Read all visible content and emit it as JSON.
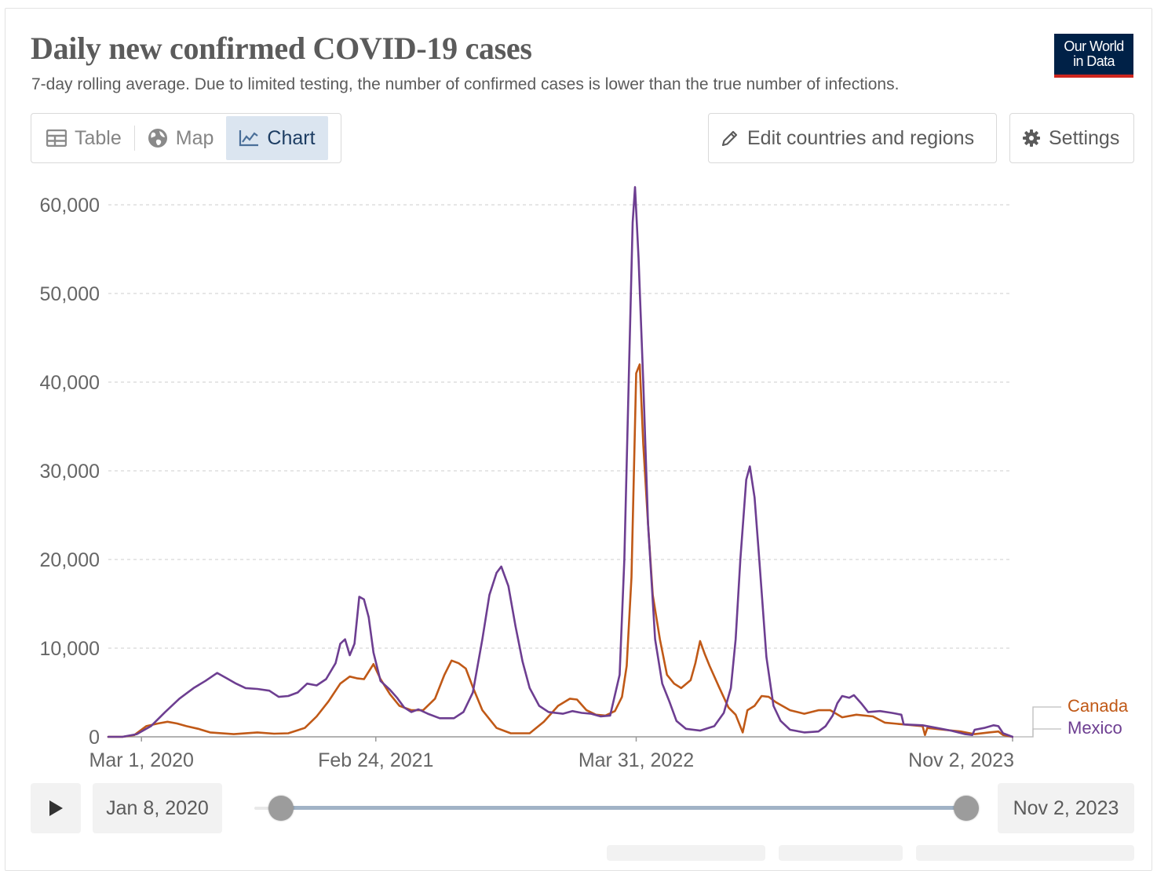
{
  "header": {
    "title": "Daily new confirmed COVID-19 cases",
    "subtitle": "7-day rolling average. Due to limited testing, the number of confirmed cases is lower than the true number of infections.",
    "logo_line1": "Our World",
    "logo_line2": "in Data"
  },
  "tabs": [
    {
      "label": "Table",
      "icon": "table-icon",
      "active": false
    },
    {
      "label": "Map",
      "icon": "globe-icon",
      "active": false
    },
    {
      "label": "Chart",
      "icon": "line-chart-icon",
      "active": true
    }
  ],
  "toolbar": {
    "edit_label": "Edit countries and regions",
    "settings_label": "Settings"
  },
  "timeline": {
    "start_label": "Jan 8, 2020",
    "end_label": "Nov 2, 2023",
    "start_fraction": 0.0,
    "end_fraction": 1.0
  },
  "colors": {
    "canada": "#c05917",
    "mexico": "#6d3e91",
    "grid": "#dddddd",
    "axis": "#999999"
  },
  "chart_data": {
    "type": "line",
    "title": "Daily new confirmed COVID-19 cases",
    "subtitle": "7-day rolling average. Due to limited testing, the number of confirmed cases is lower than the true number of infections.",
    "xlabel": "",
    "ylabel": "",
    "x_domain_years": [
      2020.02,
      2023.84
    ],
    "ylim": [
      0,
      60000
    ],
    "grid": true,
    "legend": "right",
    "yticks": [
      {
        "value": 0,
        "label": "0"
      },
      {
        "value": 10000,
        "label": "10,000"
      },
      {
        "value": 20000,
        "label": "20,000"
      },
      {
        "value": 30000,
        "label": "30,000"
      },
      {
        "value": 40000,
        "label": "40,000"
      },
      {
        "value": 50000,
        "label": "50,000"
      },
      {
        "value": 60000,
        "label": "60,000"
      }
    ],
    "xticks": [
      {
        "value": 2020.16,
        "label": "Mar 1, 2020"
      },
      {
        "value": 2021.15,
        "label": "Feb 24, 2021"
      },
      {
        "value": 2022.25,
        "label": "Mar 31, 2022"
      },
      {
        "value": 2023.84,
        "label": "Nov 2, 2023"
      }
    ],
    "series": [
      {
        "name": "Canada",
        "color": "#c05917",
        "points": [
          [
            2020.02,
            0
          ],
          [
            2020.08,
            0
          ],
          [
            2020.13,
            200
          ],
          [
            2020.18,
            1200
          ],
          [
            2020.23,
            1500
          ],
          [
            2020.27,
            1700
          ],
          [
            2020.31,
            1500
          ],
          [
            2020.35,
            1200
          ],
          [
            2020.4,
            900
          ],
          [
            2020.45,
            500
          ],
          [
            2020.55,
            300
          ],
          [
            2020.65,
            500
          ],
          [
            2020.72,
            350
          ],
          [
            2020.78,
            400
          ],
          [
            2020.85,
            1000
          ],
          [
            2020.9,
            2300
          ],
          [
            2020.95,
            4000
          ],
          [
            2021.0,
            6000
          ],
          [
            2021.04,
            6800
          ],
          [
            2021.07,
            6600
          ],
          [
            2021.1,
            6500
          ],
          [
            2021.14,
            8200
          ],
          [
            2021.17,
            6500
          ],
          [
            2021.21,
            4800
          ],
          [
            2021.25,
            3500
          ],
          [
            2021.3,
            3000
          ],
          [
            2021.35,
            3000
          ],
          [
            2021.4,
            4300
          ],
          [
            2021.44,
            7000
          ],
          [
            2021.47,
            8600
          ],
          [
            2021.5,
            8300
          ],
          [
            2021.53,
            7700
          ],
          [
            2021.56,
            5600
          ],
          [
            2021.6,
            3000
          ],
          [
            2021.66,
            1000
          ],
          [
            2021.72,
            400
          ],
          [
            2021.8,
            400
          ],
          [
            2021.86,
            1700
          ],
          [
            2021.92,
            3500
          ],
          [
            2021.97,
            4300
          ],
          [
            2022.0,
            4200
          ],
          [
            2022.04,
            3000
          ],
          [
            2022.08,
            2500
          ],
          [
            2022.12,
            2400
          ],
          [
            2022.16,
            2900
          ],
          [
            2022.19,
            4500
          ],
          [
            2022.21,
            8000
          ],
          [
            2022.23,
            18000
          ],
          [
            2022.25,
            41000
          ],
          [
            2022.265,
            42000
          ],
          [
            2022.28,
            33000
          ],
          [
            2022.3,
            24000
          ],
          [
            2022.32,
            16000
          ],
          [
            2022.35,
            11000
          ],
          [
            2022.38,
            7000
          ],
          [
            2022.41,
            6000
          ],
          [
            2022.44,
            5500
          ],
          [
            2022.48,
            6400
          ],
          [
            2022.5,
            8300
          ],
          [
            2022.52,
            10800
          ],
          [
            2022.54,
            9300
          ],
          [
            2022.56,
            8000
          ],
          [
            2022.6,
            5600
          ],
          [
            2022.64,
            3300
          ],
          [
            2022.67,
            2500
          ],
          [
            2022.7,
            500
          ],
          [
            2022.72,
            3000
          ],
          [
            2022.75,
            3500
          ],
          [
            2022.78,
            4600
          ],
          [
            2022.81,
            4500
          ],
          [
            2022.84,
            3900
          ],
          [
            2022.9,
            3000
          ],
          [
            2022.96,
            2600
          ],
          [
            2023.02,
            3000
          ],
          [
            2023.07,
            3000
          ],
          [
            2023.12,
            2200
          ],
          [
            2023.18,
            2500
          ],
          [
            2023.25,
            2300
          ],
          [
            2023.3,
            1600
          ],
          [
            2023.38,
            1400
          ],
          [
            2023.46,
            1200
          ],
          [
            2023.47,
            200
          ],
          [
            2023.48,
            1000
          ],
          [
            2023.55,
            800
          ],
          [
            2023.62,
            600
          ],
          [
            2023.68,
            300
          ],
          [
            2023.74,
            500
          ],
          [
            2023.78,
            600
          ],
          [
            2023.8,
            200
          ],
          [
            2023.84,
            0
          ]
        ]
      },
      {
        "name": "Mexico",
        "color": "#6d3e91",
        "points": [
          [
            2020.02,
            0
          ],
          [
            2020.08,
            0
          ],
          [
            2020.14,
            300
          ],
          [
            2020.2,
            1200
          ],
          [
            2020.26,
            2800
          ],
          [
            2020.32,
            4300
          ],
          [
            2020.38,
            5500
          ],
          [
            2020.43,
            6300
          ],
          [
            2020.48,
            7200
          ],
          [
            2020.52,
            6600
          ],
          [
            2020.56,
            6000
          ],
          [
            2020.6,
            5500
          ],
          [
            2020.65,
            5400
          ],
          [
            2020.7,
            5200
          ],
          [
            2020.74,
            4500
          ],
          [
            2020.78,
            4600
          ],
          [
            2020.82,
            5000
          ],
          [
            2020.86,
            6000
          ],
          [
            2020.9,
            5800
          ],
          [
            2020.94,
            6500
          ],
          [
            2020.98,
            8300
          ],
          [
            2021.0,
            10500
          ],
          [
            2021.02,
            11000
          ],
          [
            2021.04,
            9200
          ],
          [
            2021.06,
            10500
          ],
          [
            2021.08,
            15800
          ],
          [
            2021.1,
            15500
          ],
          [
            2021.12,
            13500
          ],
          [
            2021.14,
            9500
          ],
          [
            2021.17,
            6300
          ],
          [
            2021.21,
            5300
          ],
          [
            2021.24,
            4400
          ],
          [
            2021.27,
            3300
          ],
          [
            2021.3,
            2800
          ],
          [
            2021.33,
            3100
          ],
          [
            2021.37,
            2600
          ],
          [
            2021.42,
            2100
          ],
          [
            2021.48,
            2100
          ],
          [
            2021.52,
            2800
          ],
          [
            2021.56,
            5000
          ],
          [
            2021.6,
            11000
          ],
          [
            2021.63,
            16000
          ],
          [
            2021.66,
            18500
          ],
          [
            2021.68,
            19200
          ],
          [
            2021.71,
            17000
          ],
          [
            2021.74,
            12500
          ],
          [
            2021.77,
            8500
          ],
          [
            2021.8,
            5500
          ],
          [
            2021.84,
            3500
          ],
          [
            2021.88,
            2800
          ],
          [
            2021.94,
            2600
          ],
          [
            2021.98,
            2900
          ],
          [
            2022.02,
            2700
          ],
          [
            2022.06,
            2600
          ],
          [
            2022.1,
            2300
          ],
          [
            2022.14,
            2400
          ],
          [
            2022.18,
            7000
          ],
          [
            2022.2,
            20000
          ],
          [
            2022.22,
            42000
          ],
          [
            2022.235,
            58000
          ],
          [
            2022.245,
            62000
          ],
          [
            2022.26,
            54000
          ],
          [
            2022.28,
            40000
          ],
          [
            2022.3,
            24000
          ],
          [
            2022.33,
            11000
          ],
          [
            2022.36,
            6000
          ],
          [
            2022.39,
            4000
          ],
          [
            2022.42,
            1800
          ],
          [
            2022.46,
            900
          ],
          [
            2022.52,
            700
          ],
          [
            2022.58,
            1200
          ],
          [
            2022.62,
            2700
          ],
          [
            2022.65,
            5500
          ],
          [
            2022.67,
            11000
          ],
          [
            2022.69,
            20000
          ],
          [
            2022.715,
            29000
          ],
          [
            2022.73,
            30500
          ],
          [
            2022.75,
            27000
          ],
          [
            2022.77,
            20000
          ],
          [
            2022.8,
            9000
          ],
          [
            2022.83,
            3500
          ],
          [
            2022.86,
            1800
          ],
          [
            2022.9,
            800
          ],
          [
            2022.96,
            500
          ],
          [
            2023.02,
            600
          ],
          [
            2023.05,
            1200
          ],
          [
            2023.08,
            2400
          ],
          [
            2023.1,
            3800
          ],
          [
            2023.12,
            4600
          ],
          [
            2023.15,
            4400
          ],
          [
            2023.17,
            4700
          ],
          [
            2023.2,
            3800
          ],
          [
            2023.23,
            2800
          ],
          [
            2023.28,
            2900
          ],
          [
            2023.33,
            2700
          ],
          [
            2023.37,
            2500
          ],
          [
            2023.38,
            1400
          ],
          [
            2023.46,
            1300
          ],
          [
            2023.52,
            1000
          ],
          [
            2023.58,
            700
          ],
          [
            2023.64,
            300
          ],
          [
            2023.67,
            200
          ],
          [
            2023.68,
            800
          ],
          [
            2023.72,
            1000
          ],
          [
            2023.76,
            1300
          ],
          [
            2023.78,
            1200
          ],
          [
            2023.8,
            400
          ],
          [
            2023.84,
            0
          ]
        ]
      }
    ]
  }
}
